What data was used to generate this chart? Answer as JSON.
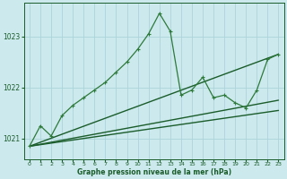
{
  "background_color": "#cce9ed",
  "grid_color": "#aad4d9",
  "line_color_dark": "#1a5c2a",
  "line_color_main": "#2d7a3a",
  "xlabel": "Graphe pression niveau de la mer (hPa)",
  "ylim": [
    1020.6,
    1023.65
  ],
  "xlim": [
    -0.5,
    23.5
  ],
  "yticks": [
    1021,
    1022,
    1023
  ],
  "xticks": [
    0,
    1,
    2,
    3,
    4,
    5,
    6,
    7,
    8,
    9,
    10,
    11,
    12,
    13,
    14,
    15,
    16,
    17,
    18,
    19,
    20,
    21,
    22,
    23
  ],
  "series_main": [
    [
      0,
      1020.85
    ],
    [
      1,
      1021.25
    ],
    [
      2,
      1021.05
    ],
    [
      3,
      1021.45
    ],
    [
      4,
      1021.65
    ],
    [
      5,
      1021.8
    ],
    [
      6,
      1021.95
    ],
    [
      7,
      1022.1
    ],
    [
      8,
      1022.3
    ],
    [
      9,
      1022.5
    ],
    [
      10,
      1022.75
    ],
    [
      11,
      1023.05
    ],
    [
      12,
      1023.45
    ],
    [
      13,
      1023.1
    ],
    [
      14,
      1021.85
    ],
    [
      15,
      1021.95
    ],
    [
      16,
      1022.2
    ],
    [
      17,
      1021.8
    ],
    [
      18,
      1021.85
    ],
    [
      19,
      1021.7
    ],
    [
      20,
      1021.6
    ],
    [
      21,
      1021.95
    ],
    [
      22,
      1022.55
    ],
    [
      23,
      1022.65
    ]
  ],
  "ref_lines": [
    [
      [
        0,
        1020.85
      ],
      [
        23,
        1022.65
      ]
    ],
    [
      [
        0,
        1020.85
      ],
      [
        23,
        1021.75
      ]
    ],
    [
      [
        0,
        1020.85
      ],
      [
        23,
        1021.55
      ]
    ]
  ]
}
